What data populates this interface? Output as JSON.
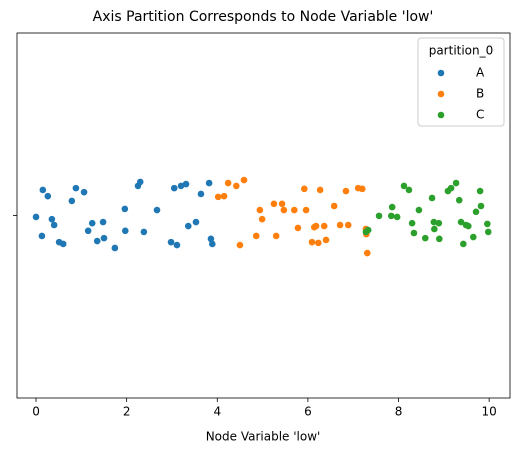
{
  "chart_data": {
    "type": "strip",
    "title": "Axis Partition Corresponds to Node Variable 'low'",
    "xlabel": "Node Variable 'low'",
    "xlim": [
      -0.42,
      10.46
    ],
    "xticks": [
      0,
      2,
      4,
      6,
      8,
      10
    ],
    "ylim": [
      0.5,
      -0.5
    ],
    "yticks": [
      {
        "value": 0,
        "label": null
      }
    ],
    "legend_title": "partition_0",
    "legend": "upper right",
    "series": [
      {
        "name": "A",
        "color": "#1f77b4",
        "x": [
          0.0,
          0.15,
          0.26,
          0.13,
          0.35,
          0.4,
          0.51,
          0.6,
          0.79,
          0.88,
          1.06,
          1.15,
          1.24,
          1.35,
          1.48,
          1.5,
          1.74,
          1.96,
          1.97,
          2.25,
          2.3,
          2.38,
          2.67,
          2.98,
          3.05,
          3.11,
          3.2,
          3.31,
          3.36,
          3.53,
          3.64,
          3.82,
          3.86,
          3.89
        ],
        "y": [
          0.004,
          -0.07,
          -0.053,
          0.056,
          0.01,
          0.026,
          0.073,
          0.078,
          -0.04,
          -0.075,
          -0.064,
          0.042,
          0.021,
          0.07,
          0.018,
          0.062,
          0.089,
          -0.018,
          0.042,
          -0.081,
          -0.092,
          0.045,
          -0.015,
          0.073,
          -0.075,
          0.081,
          -0.081,
          -0.086,
          0.029,
          0.018,
          -0.059,
          -0.089,
          0.064,
          0.078
        ]
      },
      {
        "name": "B",
        "color": "#ff7f0e",
        "x": [
          4.02,
          4.15,
          4.24,
          4.42,
          4.59,
          4.5,
          4.86,
          4.94,
          4.99,
          5.25,
          5.3,
          5.43,
          5.47,
          5.7,
          5.78,
          5.92,
          5.96,
          6.09,
          6.14,
          6.18,
          6.23,
          6.27,
          6.36,
          6.4,
          6.58,
          6.71,
          6.84,
          6.89,
          7.11,
          7.2,
          7.28,
          7.29,
          7.31
        ],
        "y": [
          -0.051,
          -0.053,
          -0.089,
          -0.081,
          -0.097,
          0.081,
          0.056,
          -0.015,
          0.01,
          -0.032,
          0.056,
          -0.032,
          -0.015,
          -0.015,
          0.034,
          -0.073,
          -0.015,
          0.073,
          0.032,
          0.029,
          0.075,
          -0.07,
          0.029,
          0.067,
          -0.026,
          0.026,
          -0.067,
          0.026,
          -0.075,
          -0.073,
          0.037,
          0.051,
          0.103
        ]
      },
      {
        "name": "C",
        "color": "#2ca02c",
        "x": [
          7.28,
          7.33,
          7.57,
          7.84,
          7.86,
          7.97,
          8.12,
          8.23,
          8.3,
          8.34,
          8.45,
          8.59,
          8.74,
          8.79,
          8.78,
          8.9,
          8.89,
          9.09,
          9.16,
          9.27,
          9.34,
          9.38,
          9.43,
          9.49,
          9.54,
          9.65,
          9.71,
          9.8,
          9.82,
          9.96,
          9.98
        ],
        "y": [
          0.045,
          0.04,
          0.001,
          0.001,
          -0.023,
          0.004,
          -0.081,
          -0.07,
          0.021,
          0.048,
          -0.015,
          0.062,
          -0.048,
          0.037,
          0.018,
          0.064,
          0.021,
          -0.067,
          -0.075,
          -0.089,
          -0.042,
          0.018,
          0.078,
          0.026,
          0.029,
          0.059,
          -0.01,
          -0.067,
          -0.026,
          0.023,
          0.045
        ]
      }
    ]
  }
}
